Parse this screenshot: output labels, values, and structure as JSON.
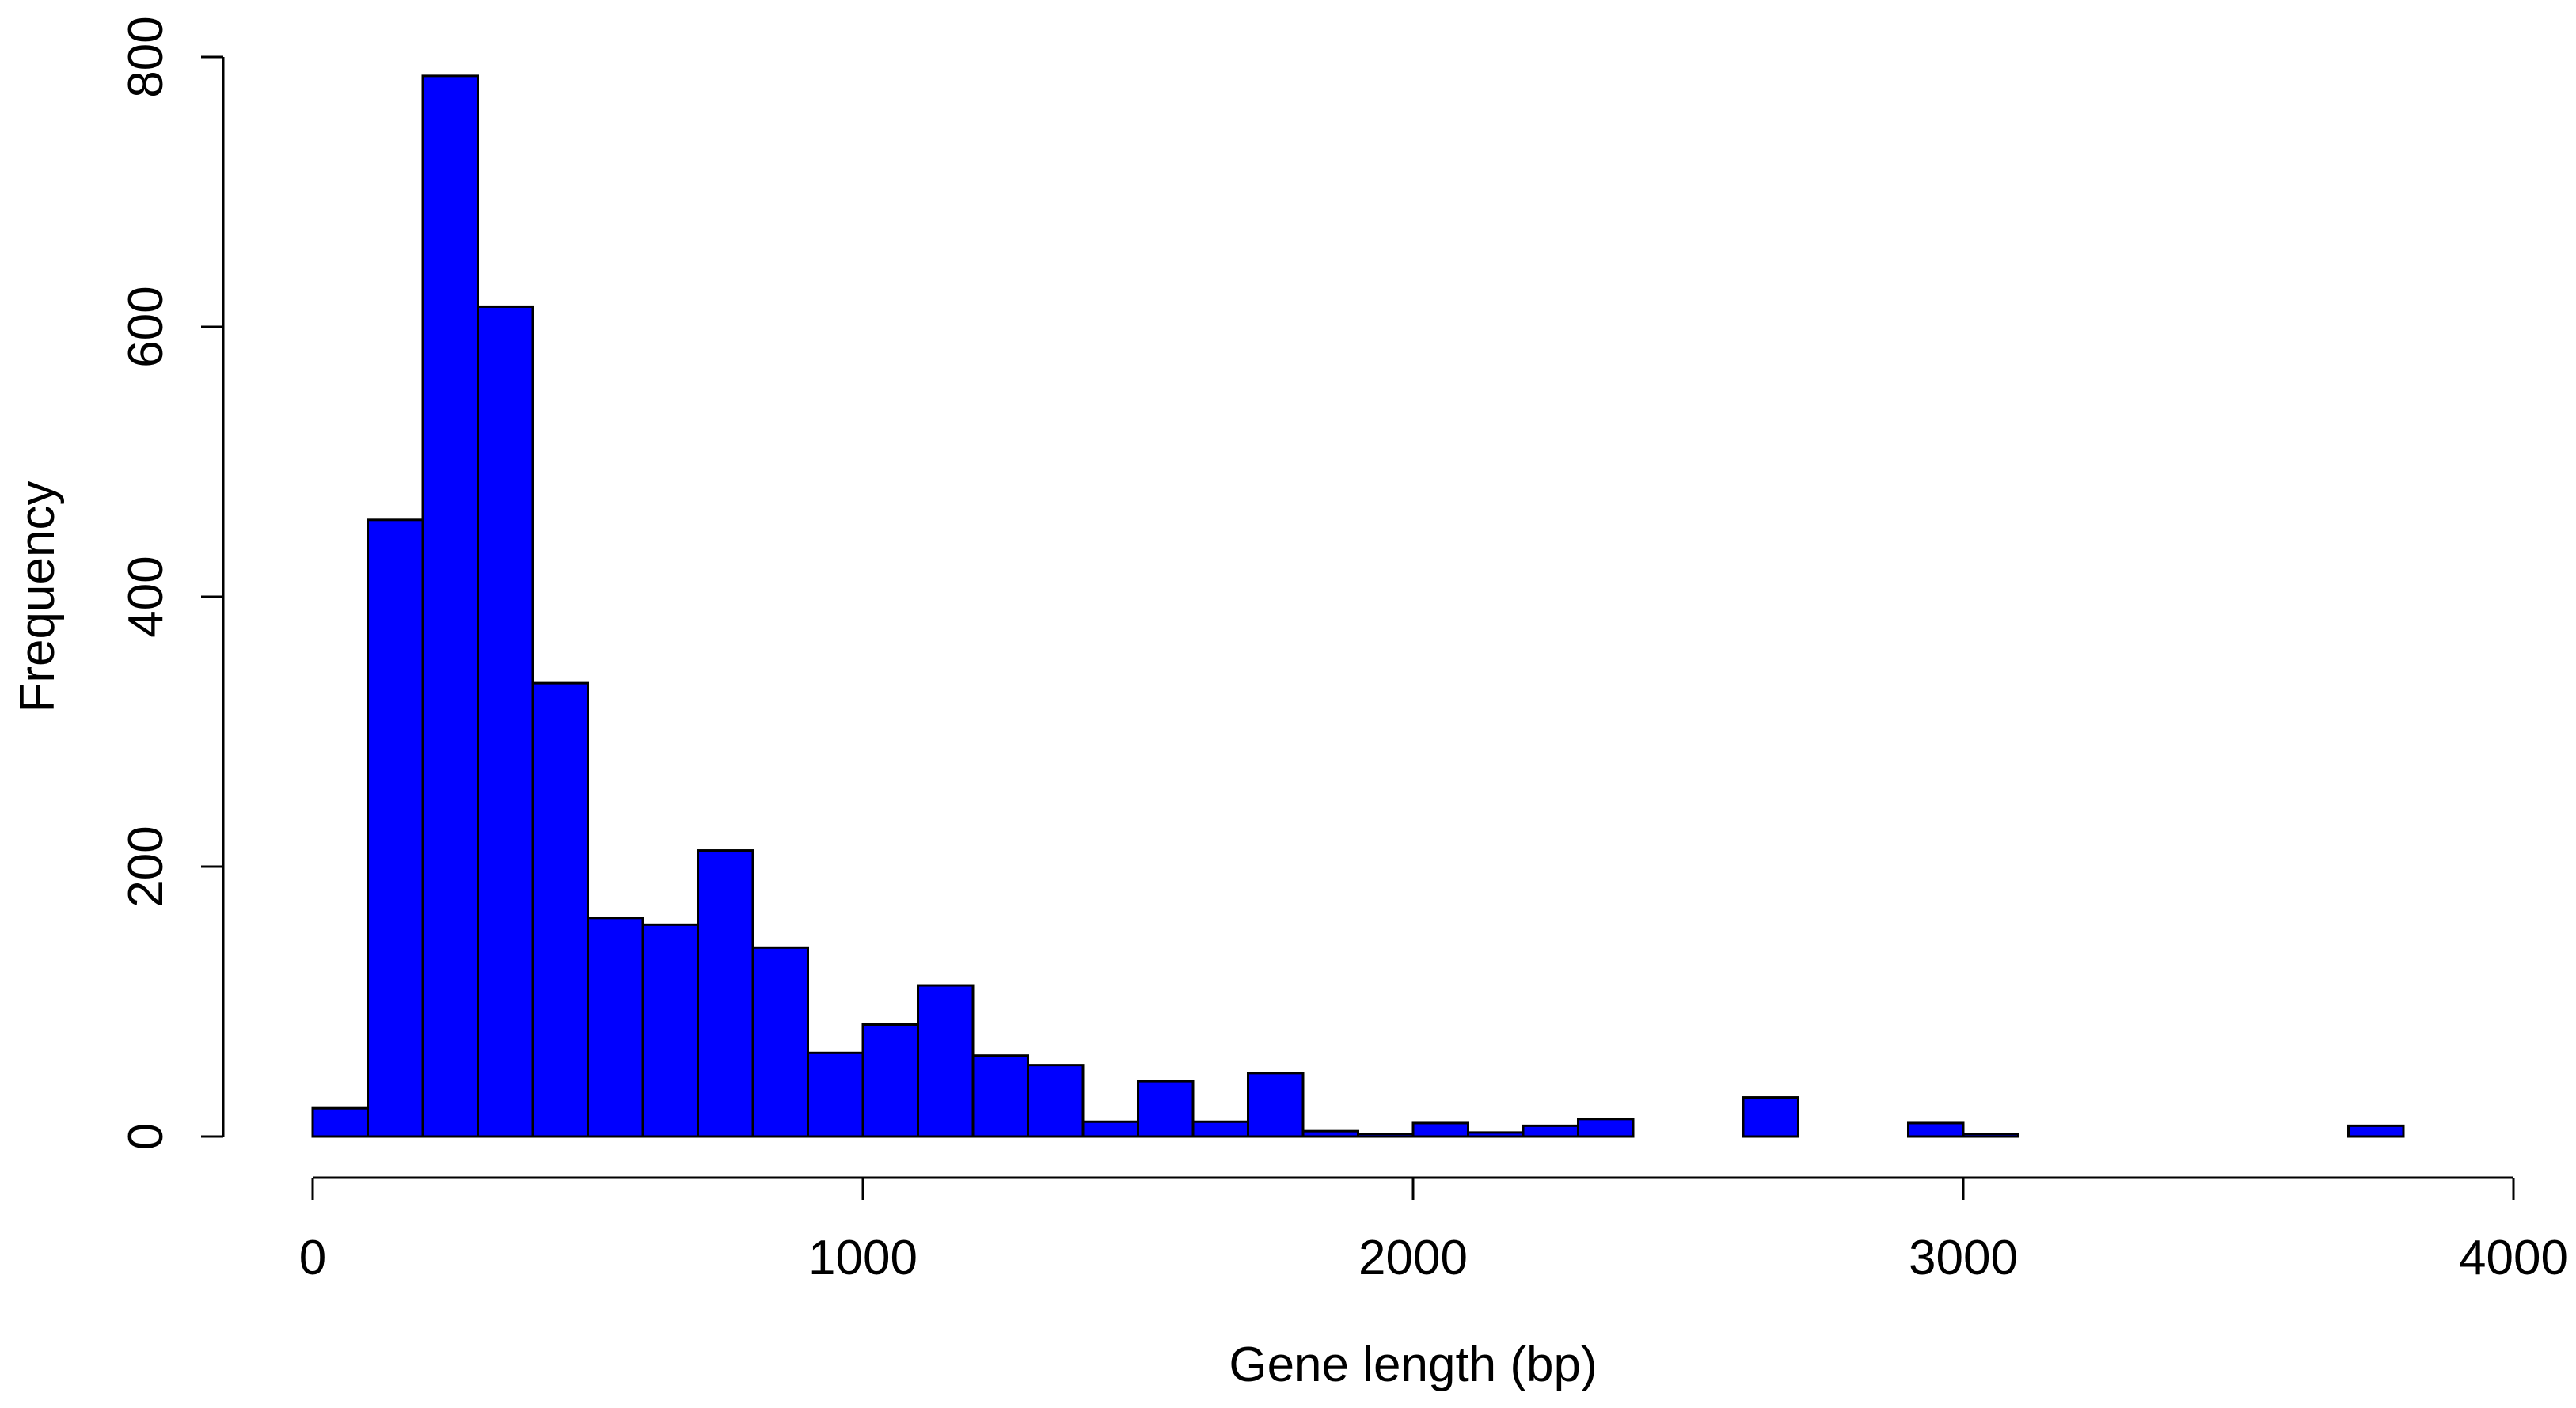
{
  "chart_data": {
    "type": "histogram",
    "title": "",
    "xlabel": "Gene length (bp)",
    "ylabel": "Frequency",
    "bin_width": 100,
    "xlim": [
      0,
      4000
    ],
    "ylim": [
      0,
      800
    ],
    "x_ticks": [
      0,
      1000,
      2000,
      3000,
      4000
    ],
    "y_ticks": [
      0,
      200,
      400,
      600,
      800
    ],
    "bin_starts": [
      0,
      100,
      200,
      300,
      400,
      500,
      600,
      700,
      800,
      900,
      1000,
      1100,
      1200,
      1300,
      1400,
      1500,
      1600,
      1700,
      1800,
      1900,
      2000,
      2100,
      2200,
      2300,
      2400,
      2500,
      2600,
      2700,
      2800,
      2900,
      3000,
      3100,
      3200,
      3300,
      3400,
      3500,
      3600,
      3700
    ],
    "values": [
      21,
      457,
      786,
      615,
      336,
      162,
      157,
      212,
      140,
      62,
      83,
      112,
      60,
      53,
      11,
      41,
      11,
      47,
      4,
      2,
      10,
      3,
      8,
      13,
      0,
      0,
      29,
      0,
      0,
      10,
      2,
      0,
      0,
      0,
      0,
      0,
      0,
      8
    ],
    "bar_color": "#0000ff",
    "edge_color": "#000000",
    "grid": false
  }
}
